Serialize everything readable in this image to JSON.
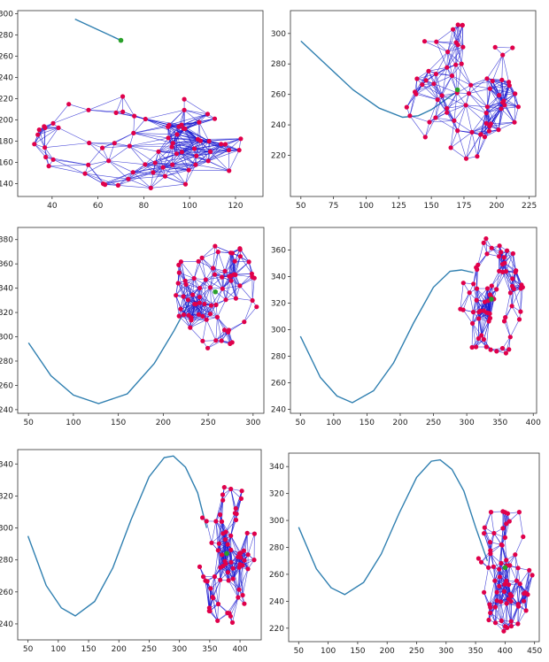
{
  "chart_data": [
    {
      "type": "line",
      "title": "",
      "xlim": [
        25,
        132
      ],
      "ylim": [
        128,
        303
      ],
      "xticks": [
        "40",
        "60",
        "80",
        "100",
        "120"
      ],
      "yticks": [
        "140",
        "160",
        "180",
        "200",
        "220",
        "240",
        "260",
        "280",
        "300"
      ],
      "path": {
        "x": [
          50,
          70
        ],
        "y": [
          295,
          275
        ]
      },
      "cloud": {
        "cx": 79,
        "cy": 181,
        "rx": 48,
        "ry": 48,
        "n": 72
      },
      "highlight": {
        "x": 70,
        "y": 275
      }
    },
    {
      "type": "line",
      "title": "",
      "xlim": [
        42,
        230
      ],
      "ylim": [
        193,
        315
      ],
      "xticks": [
        "50",
        "75",
        "100",
        "125",
        "150",
        "175",
        "200",
        "225"
      ],
      "yticks": [
        "220",
        "240",
        "260",
        "280",
        "300"
      ],
      "path": {
        "x": [
          50,
          70,
          90,
          110,
          128,
          140,
          150,
          160,
          170
        ],
        "y": [
          295,
          279,
          263,
          251,
          245,
          246,
          250,
          256,
          262
        ]
      },
      "cloud": {
        "cx": 175,
        "cy": 262,
        "rx": 47,
        "ry": 47,
        "n": 68
      },
      "highlight": {
        "x": 170,
        "y": 263
      }
    },
    {
      "type": "line",
      "title": "",
      "xlim": [
        38,
        312
      ],
      "ylim": [
        237,
        390
      ],
      "xticks": [
        "50",
        "100",
        "150",
        "200",
        "250",
        "300"
      ],
      "yticks": [
        "240",
        "260",
        "280",
        "300",
        "320",
        "340",
        "360",
        "380"
      ],
      "path": {
        "x": [
          50,
          75,
          100,
          128,
          160,
          190,
          212,
          230
        ],
        "y": [
          295,
          268,
          252,
          245,
          253,
          278,
          305,
          330
        ]
      },
      "cloud": {
        "cx": 258,
        "cy": 337,
        "rx": 48,
        "ry": 48,
        "n": 72
      },
      "highlight": {
        "x": 258,
        "y": 337
      }
    },
    {
      "type": "line",
      "title": "",
      "xlim": [
        35,
        405
      ],
      "ylim": [
        237,
        377
      ],
      "xticks": [
        "50",
        "100",
        "150",
        "200",
        "250",
        "300",
        "350",
        "400"
      ],
      "yticks": [
        "240",
        "260",
        "280",
        "300",
        "320",
        "340",
        "360"
      ],
      "path": {
        "x": [
          50,
          80,
          105,
          128,
          160,
          190,
          220,
          250,
          275,
          292,
          310
        ],
        "y": [
          295,
          264,
          250,
          245,
          254,
          275,
          305,
          332,
          344,
          345,
          343
        ]
      },
      "cloud": {
        "cx": 337,
        "cy": 323,
        "rx": 48,
        "ry": 48,
        "n": 70
      },
      "highlight": {
        "x": 337,
        "y": 323
      }
    },
    {
      "type": "line",
      "title": "",
      "xlim": [
        33,
        435
      ],
      "ylim": [
        230,
        349
      ],
      "xticks": [
        "50",
        "100",
        "150",
        "200",
        "250",
        "300",
        "350",
        "400"
      ],
      "yticks": [
        "240",
        "260",
        "280",
        "300",
        "320",
        "340"
      ],
      "path": {
        "x": [
          50,
          80,
          105,
          128,
          160,
          190,
          220,
          250,
          275,
          290,
          310,
          330,
          345
        ],
        "y": [
          295,
          264,
          250,
          245,
          254,
          275,
          305,
          332,
          344,
          345,
          338,
          322,
          300
        ]
      },
      "cloud": {
        "cx": 378,
        "cy": 284,
        "rx": 48,
        "ry": 48,
        "n": 70
      },
      "highlight": {
        "x": 378,
        "y": 284
      }
    },
    {
      "type": "line",
      "title": "",
      "xlim": [
        33,
        458
      ],
      "ylim": [
        210,
        350
      ],
      "xticks": [
        "50",
        "100",
        "150",
        "200",
        "250",
        "300",
        "350",
        "400",
        "450"
      ],
      "yticks": [
        "220",
        "240",
        "260",
        "280",
        "300",
        "320",
        "340"
      ],
      "path": {
        "x": [
          50,
          80,
          105,
          128,
          160,
          190,
          220,
          250,
          275,
          290,
          310,
          330,
          350,
          370
        ],
        "y": [
          295,
          264,
          250,
          245,
          254,
          275,
          305,
          332,
          344,
          345,
          338,
          322,
          295,
          270
        ]
      },
      "cloud": {
        "cx": 400,
        "cy": 265,
        "rx": 48,
        "ry": 48,
        "n": 70
      },
      "highlight": {
        "x": 400,
        "y": 265
      }
    }
  ],
  "colors": {
    "path": "#2f7fb0",
    "edge": "#1a1ad0",
    "node": "#e0004a",
    "highlight": "#2aa02a",
    "axis": "#333333"
  }
}
